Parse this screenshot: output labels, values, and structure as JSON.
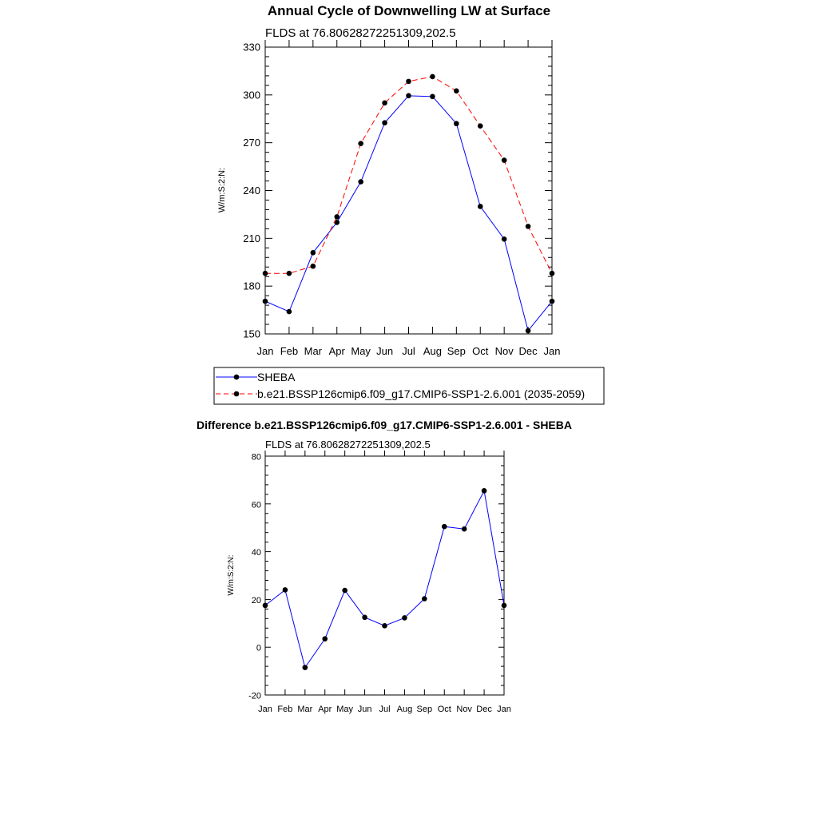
{
  "chart_data": [
    {
      "type": "line",
      "title": "Annual Cycle of Downwelling LW at Surface",
      "subtitle": "FLDS at 76.80628272251309,202.5",
      "ylabel": "W/m:S:2:N:",
      "xlabel": "",
      "ylim": [
        150,
        330
      ],
      "yticks": [
        150,
        180,
        210,
        240,
        270,
        300,
        330
      ],
      "categories": [
        "Jan",
        "Feb",
        "Mar",
        "Apr",
        "May",
        "Jun",
        "Jul",
        "Aug",
        "Sep",
        "Oct",
        "Nov",
        "Dec",
        "Jan"
      ],
      "grid": false,
      "legend": "bottom",
      "series": [
        {
          "name": "SHEBA",
          "color": "#0000ff",
          "dash": "solid",
          "values": [
            170.5,
            164,
            201,
            220,
            245.5,
            282.5,
            299.5,
            299,
            282,
            230,
            209.5,
            152,
            170.5
          ]
        },
        {
          "name": "b.e21.BSSP126cmip6.f09_g17.CMIP6-SSP1-2.6.001 (2035-2059)",
          "color": "#ff0000",
          "dash": "dashed",
          "values": [
            188,
            188,
            192.5,
            223.5,
            269.5,
            295,
            308.5,
            311.5,
            302.5,
            280.5,
            259,
            217.5,
            188
          ]
        }
      ]
    },
    {
      "type": "line",
      "title": "Difference b.e21.BSSP126cmip6.f09_g17.CMIP6-SSP1-2.6.001 - SHEBA",
      "subtitle": "FLDS at 76.80628272251309,202.5",
      "ylabel": "W/m:S:2:N:",
      "xlabel": "",
      "ylim": [
        -20,
        80
      ],
      "yticks": [
        -20,
        0,
        20,
        40,
        60,
        80
      ],
      "categories": [
        "Jan",
        "Feb",
        "Mar",
        "Apr",
        "May",
        "Jun",
        "Jul",
        "Aug",
        "Sep",
        "Oct",
        "Nov",
        "Dec",
        "Jan"
      ],
      "grid": false,
      "series": [
        {
          "color": "#0000ff",
          "dash": "solid",
          "values": [
            17.5,
            24,
            -8.5,
            3.5,
            23.8,
            12.5,
            9,
            12.3,
            20.3,
            50.5,
            49.5,
            65.5,
            17.5
          ]
        }
      ]
    }
  ]
}
